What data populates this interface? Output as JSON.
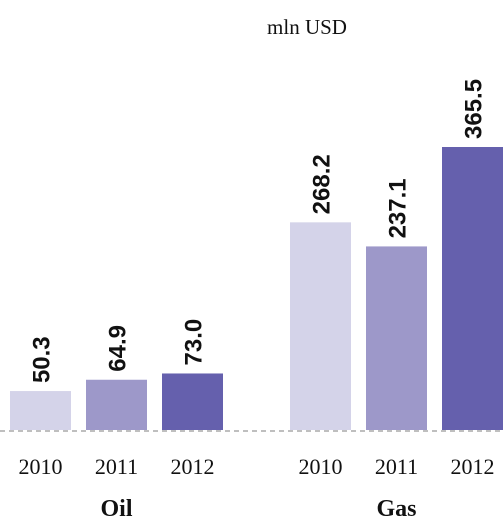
{
  "chart_data": {
    "type": "bar",
    "title": "mln USD",
    "categories": [
      "Oil",
      "Gas"
    ],
    "series": [
      {
        "name": "2010",
        "color": "#d4d3e9",
        "values": [
          50.3,
          268.2
        ],
        "value_labels": [
          "50.3",
          "268.2"
        ]
      },
      {
        "name": "2011",
        "color": "#9d98c9",
        "values": [
          64.9,
          237.1
        ],
        "value_labels": [
          "64.9",
          "237.1"
        ]
      },
      {
        "name": "2012",
        "color": "#6560ad",
        "values": [
          73.0,
          365.5
        ],
        "value_labels": [
          "73.0",
          "365.5"
        ]
      }
    ]
  }
}
